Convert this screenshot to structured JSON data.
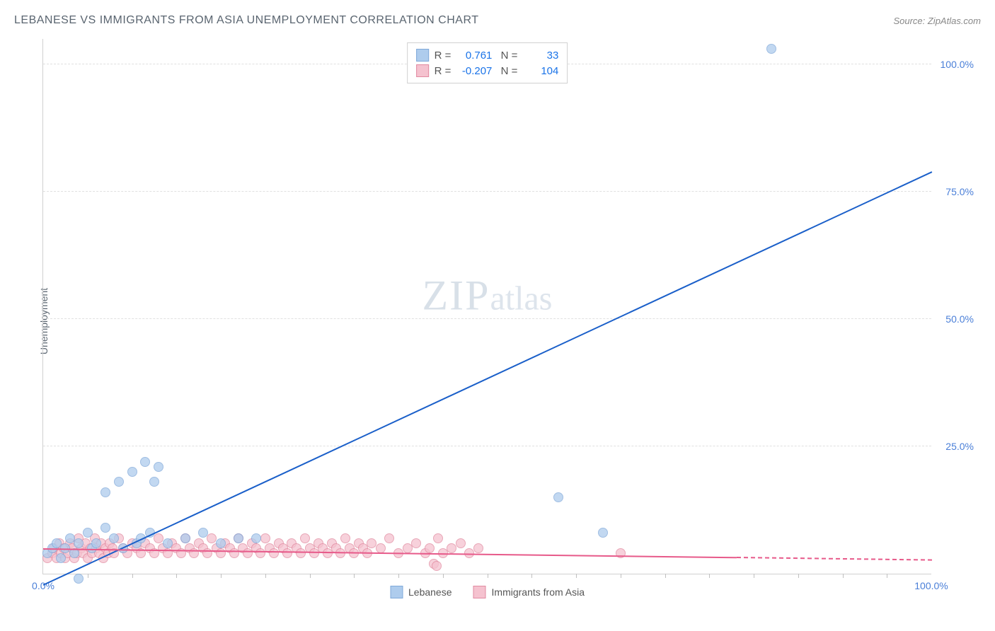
{
  "header": {
    "title": "LEBANESE VS IMMIGRANTS FROM ASIA UNEMPLOYMENT CORRELATION CHART",
    "source_prefix": "Source: ",
    "source_name": "ZipAtlas.com"
  },
  "watermark": {
    "zip": "ZIP",
    "atlas": "atlas"
  },
  "chart": {
    "type": "scatter",
    "ylabel": "Unemployment",
    "xlim": [
      0,
      100
    ],
    "ylim": [
      0,
      105
    ],
    "ytick_labels": [
      "25.0%",
      "50.0%",
      "75.0%",
      "100.0%"
    ],
    "ytick_values": [
      25,
      50,
      75,
      100
    ],
    "xtick_labels_ends": [
      "0.0%",
      "100.0%"
    ],
    "x_minor_ticks": [
      5,
      10,
      15,
      20,
      25,
      30,
      35,
      40,
      45,
      50,
      55,
      60,
      65,
      70,
      75,
      80,
      85,
      90,
      95
    ],
    "background_color": "#ffffff",
    "grid_color": "#e0e0e0",
    "axis_color": "#d0d0d0",
    "tick_label_color": "#4a7fd8",
    "series": [
      {
        "name": "Lebanese",
        "color_fill": "#aecced",
        "color_stroke": "#7fa8d9",
        "R": "0.761",
        "N": "33",
        "regression": {
          "x1": 0,
          "y1": -2,
          "x2": 100,
          "y2": 79,
          "color": "#1a5fc9",
          "width": 2
        },
        "points": [
          [
            0.5,
            4
          ],
          [
            1,
            5
          ],
          [
            1.5,
            6
          ],
          [
            2,
            3
          ],
          [
            2.5,
            5
          ],
          [
            3,
            7
          ],
          [
            3.5,
            4
          ],
          [
            4,
            6
          ],
          [
            4,
            -1
          ],
          [
            5,
            8
          ],
          [
            5.5,
            5
          ],
          [
            6,
            6
          ],
          [
            7,
            9
          ],
          [
            7,
            16
          ],
          [
            8,
            7
          ],
          [
            8.5,
            18
          ],
          [
            9,
            5
          ],
          [
            10,
            20
          ],
          [
            10.5,
            6
          ],
          [
            11,
            7
          ],
          [
            11.5,
            22
          ],
          [
            12,
            8
          ],
          [
            12.5,
            18
          ],
          [
            13,
            21
          ],
          [
            14,
            6
          ],
          [
            16,
            7
          ],
          [
            18,
            8
          ],
          [
            20,
            6
          ],
          [
            22,
            7
          ],
          [
            24,
            7
          ],
          [
            58,
            15
          ],
          [
            63,
            8
          ],
          [
            82,
            103
          ]
        ]
      },
      {
        "name": "Immigrants from Asia",
        "color_fill": "#f5c2cf",
        "color_stroke": "#e18aa0",
        "R": "-0.207",
        "N": "104",
        "regression_solid": {
          "x1": 0,
          "y1": 5.2,
          "x2": 78,
          "y2": 3.5,
          "color": "#e75a8a",
          "width": 2
        },
        "regression_dashed": {
          "x1": 78,
          "y1": 3.5,
          "x2": 100,
          "y2": 3.0,
          "color": "#e75a8a",
          "width": 2
        },
        "points": [
          [
            0.5,
            3
          ],
          [
            1,
            4
          ],
          [
            1.2,
            5
          ],
          [
            1.5,
            3
          ],
          [
            1.8,
            6
          ],
          [
            2,
            4
          ],
          [
            2.3,
            5
          ],
          [
            2.5,
            3
          ],
          [
            2.8,
            4
          ],
          [
            3,
            6
          ],
          [
            3.3,
            5
          ],
          [
            3.5,
            3
          ],
          [
            3.8,
            4
          ],
          [
            4,
            7
          ],
          [
            4.3,
            5
          ],
          [
            4.5,
            4
          ],
          [
            4.8,
            6
          ],
          [
            5,
            3
          ],
          [
            5.3,
            5
          ],
          [
            5.5,
            4
          ],
          [
            5.8,
            7
          ],
          [
            6,
            5
          ],
          [
            6.3,
            4
          ],
          [
            6.5,
            6
          ],
          [
            6.8,
            3
          ],
          [
            7,
            5
          ],
          [
            7.3,
            4
          ],
          [
            7.5,
            6
          ],
          [
            7.8,
            5
          ],
          [
            8,
            4
          ],
          [
            8.5,
            7
          ],
          [
            9,
            5
          ],
          [
            9.5,
            4
          ],
          [
            10,
            6
          ],
          [
            10.5,
            5
          ],
          [
            11,
            4
          ],
          [
            11.5,
            6
          ],
          [
            12,
            5
          ],
          [
            12.5,
            4
          ],
          [
            13,
            7
          ],
          [
            13.5,
            5
          ],
          [
            14,
            4
          ],
          [
            14.5,
            6
          ],
          [
            15,
            5
          ],
          [
            15.5,
            4
          ],
          [
            16,
            7
          ],
          [
            16.5,
            5
          ],
          [
            17,
            4
          ],
          [
            17.5,
            6
          ],
          [
            18,
            5
          ],
          [
            18.5,
            4
          ],
          [
            19,
            7
          ],
          [
            19.5,
            5
          ],
          [
            20,
            4
          ],
          [
            20.5,
            6
          ],
          [
            21,
            5
          ],
          [
            21.5,
            4
          ],
          [
            22,
            7
          ],
          [
            22.5,
            5
          ],
          [
            23,
            4
          ],
          [
            23.5,
            6
          ],
          [
            24,
            5
          ],
          [
            24.5,
            4
          ],
          [
            25,
            7
          ],
          [
            25.5,
            5
          ],
          [
            26,
            4
          ],
          [
            26.5,
            6
          ],
          [
            27,
            5
          ],
          [
            27.5,
            4
          ],
          [
            28,
            6
          ],
          [
            28.5,
            5
          ],
          [
            29,
            4
          ],
          [
            29.5,
            7
          ],
          [
            30,
            5
          ],
          [
            30.5,
            4
          ],
          [
            31,
            6
          ],
          [
            31.5,
            5
          ],
          [
            32,
            4
          ],
          [
            32.5,
            6
          ],
          [
            33,
            5
          ],
          [
            33.5,
            4
          ],
          [
            34,
            7
          ],
          [
            34.5,
            5
          ],
          [
            35,
            4
          ],
          [
            35.5,
            6
          ],
          [
            36,
            5
          ],
          [
            36.5,
            4
          ],
          [
            37,
            6
          ],
          [
            38,
            5
          ],
          [
            39,
            7
          ],
          [
            40,
            4
          ],
          [
            41,
            5
          ],
          [
            42,
            6
          ],
          [
            43,
            4
          ],
          [
            43.5,
            5
          ],
          [
            44,
            2
          ],
          [
            44.3,
            1.5
          ],
          [
            44.5,
            7
          ],
          [
            45,
            4
          ],
          [
            46,
            5
          ],
          [
            47,
            6
          ],
          [
            48,
            4
          ],
          [
            49,
            5
          ],
          [
            65,
            4
          ]
        ]
      }
    ],
    "legend_bottom": [
      {
        "label": "Lebanese",
        "fill": "#aecced",
        "stroke": "#7fa8d9"
      },
      {
        "label": "Immigrants from Asia",
        "fill": "#f5c2cf",
        "stroke": "#e18aa0"
      }
    ]
  }
}
